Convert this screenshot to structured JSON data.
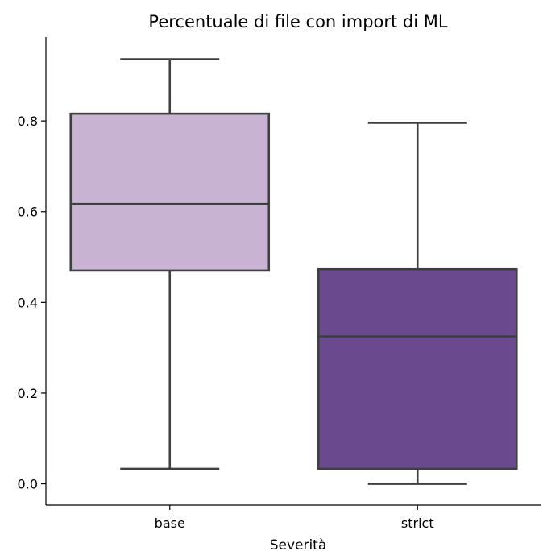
{
  "chart_data": {
    "type": "box",
    "title": "Percentuale di file con import di ML",
    "xlabel": "Severità",
    "ylabel": "",
    "categories": [
      "base",
      "strict"
    ],
    "ylim": [
      -0.047,
      0.985
    ],
    "yticks": [
      0.0,
      0.2,
      0.4,
      0.6,
      0.8
    ],
    "ytick_labels": [
      "0.0",
      "0.2",
      "0.4",
      "0.6",
      "0.8"
    ],
    "grid": false,
    "boxes": [
      {
        "category": "base",
        "whisker_low": 0.033,
        "q1": 0.47,
        "median": 0.617,
        "q3": 0.816,
        "whisker_high": 0.936,
        "color": "#c8b4d2"
      },
      {
        "category": "strict",
        "whisker_low": 0.0,
        "q1": 0.033,
        "median": 0.325,
        "q3": 0.473,
        "whisker_high": 0.796,
        "color": "#6a498f"
      }
    ],
    "line_color": "#3f3f3f"
  }
}
